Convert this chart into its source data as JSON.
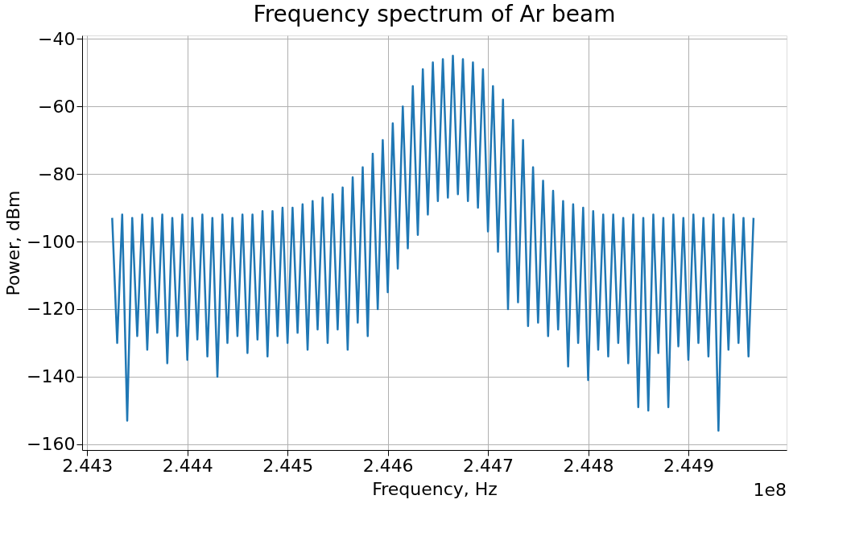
{
  "chart_data": {
    "type": "line",
    "title": "Frequency spectrum of Ar beam",
    "xlabel": "Frequency, Hz",
    "ylabel": "Power, dBm",
    "annotations": [
      "1e8"
    ],
    "x": [
      2.44325,
      2.4433,
      2.44335,
      2.4434,
      2.44345,
      2.4435,
      2.44355,
      2.4436,
      2.44365,
      2.4437,
      2.44375,
      2.4438,
      2.44385,
      2.4439,
      2.44395,
      2.444,
      2.44405,
      2.4441,
      2.44415,
      2.4442,
      2.44425,
      2.4443,
      2.44435,
      2.4444,
      2.44445,
      2.4445,
      2.44455,
      2.4446,
      2.44465,
      2.4447,
      2.44475,
      2.4448,
      2.44485,
      2.4449,
      2.44495,
      2.445,
      2.44505,
      2.4451,
      2.44515,
      2.4452,
      2.44525,
      2.4453,
      2.44535,
      2.4454,
      2.44545,
      2.4455,
      2.44555,
      2.4456,
      2.44565,
      2.4457,
      2.44575,
      2.4458,
      2.44585,
      2.4459,
      2.44595,
      2.446,
      2.44605,
      2.4461,
      2.44615,
      2.4462,
      2.44625,
      2.4463,
      2.44635,
      2.4464,
      2.44645,
      2.4465,
      2.44655,
      2.4466,
      2.44665,
      2.4467,
      2.44675,
      2.4468,
      2.44685,
      2.4469,
      2.44695,
      2.447,
      2.44705,
      2.4471,
      2.44715,
      2.4472,
      2.44725,
      2.4473,
      2.44735,
      2.4474,
      2.44745,
      2.4475,
      2.44755,
      2.4476,
      2.44765,
      2.4477,
      2.44775,
      2.4478,
      2.44785,
      2.4479,
      2.44795,
      2.448,
      2.44805,
      2.4481,
      2.44815,
      2.4482,
      2.44825,
      2.4483,
      2.44835,
      2.4484,
      2.44845,
      2.4485,
      2.44855,
      2.4486,
      2.44865,
      2.4487,
      2.44875,
      2.4488,
      2.44885,
      2.4489,
      2.44895,
      2.449,
      2.44905,
      2.4491,
      2.44915,
      2.4492,
      2.44925,
      2.4493,
      2.44935,
      2.4494,
      2.44945,
      2.4495,
      2.44955,
      2.4496,
      2.44965
    ],
    "series": [
      {
        "color": "#1f77b4",
        "values": [
          -93,
          -130,
          -92,
          -153,
          -93,
          -128,
          -92,
          -132,
          -93,
          -127,
          -92,
          -136,
          -93,
          -128,
          -92,
          -135,
          -93,
          -129,
          -92,
          -134,
          -93,
          -140,
          -92,
          -130,
          -93,
          -128,
          -92,
          -133,
          -92,
          -129,
          -91,
          -134,
          -91,
          -128,
          -90,
          -130,
          -90,
          -127,
          -89,
          -132,
          -88,
          -126,
          -87,
          -130,
          -86,
          -126,
          -84,
          -132,
          -81,
          -124,
          -78,
          -128,
          -74,
          -120,
          -70,
          -115,
          -65,
          -108,
          -60,
          -102,
          -54,
          -98,
          -49,
          -92,
          -47,
          -88,
          -46,
          -87,
          -45,
          -86,
          -46,
          -88,
          -47,
          -90,
          -49,
          -97,
          -54,
          -103,
          -58,
          -120,
          -64,
          -118,
          -70,
          -125,
          -78,
          -124,
          -82,
          -128,
          -85,
          -126,
          -88,
          -137,
          -89,
          -130,
          -90,
          -141,
          -91,
          -132,
          -92,
          -134,
          -92,
          -130,
          -93,
          -136,
          -92,
          -149,
          -93,
          -150,
          -92,
          -133,
          -93,
          -149,
          -92,
          -131,
          -93,
          -135,
          -92,
          -130,
          -93,
          -134,
          -92,
          -156,
          -93,
          -132,
          -92,
          -130,
          -93,
          -134,
          -93
        ]
      }
    ],
    "xlim": [
      2.44295,
      2.44998
    ],
    "xticks": [
      2.443,
      2.444,
      2.445,
      2.446,
      2.447,
      2.448,
      2.449
    ],
    "ylim": [
      -161.7,
      -39.0
    ],
    "yticks": [
      -160,
      -140,
      -120,
      -100,
      -80,
      -60,
      -40
    ],
    "grid": true,
    "marker": "none",
    "line_style": "solid"
  }
}
